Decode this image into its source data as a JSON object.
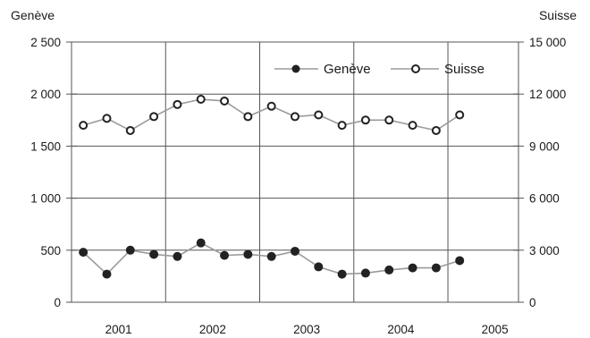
{
  "chart_data": {
    "type": "line",
    "y_left_title": "Genève",
    "y_right_title": "Suisse",
    "y_left_range": [
      0,
      2500
    ],
    "y_right_range": [
      0,
      15000
    ],
    "y_left_ticks": [
      "0",
      "500",
      "1 000",
      "1 500",
      "2 000",
      "2 500"
    ],
    "y_left_tick_values": [
      0,
      500,
      1000,
      1500,
      2000,
      2500
    ],
    "y_right_ticks": [
      "0",
      "3 000",
      "6 000",
      "9 000",
      "12 000",
      "15 000"
    ],
    "y_right_tick_values": [
      0,
      3000,
      6000,
      9000,
      12000,
      15000
    ],
    "x_ticks": [
      "2001",
      "2002",
      "2003",
      "2004",
      "2005"
    ],
    "x_range": [
      2000.75,
      2005.5
    ],
    "x_tick_values": [
      2001.25,
      2002.25,
      2003.25,
      2004.25,
      2005.25
    ],
    "x_grid_values": [
      2001.75,
      2002.75,
      2003.75,
      2004.75
    ],
    "grid": true,
    "legend_position": "top-right",
    "legend": [
      "Genève",
      "Suisse"
    ],
    "series": [
      {
        "name": "Genève",
        "axis": "left",
        "marker": "filled-circle",
        "color": "#222222",
        "x": [
          2000.875,
          2001.125,
          2001.375,
          2001.625,
          2001.875,
          2002.125,
          2002.375,
          2002.625,
          2002.875,
          2003.125,
          2003.375,
          2003.625,
          2003.875,
          2004.125,
          2004.375,
          2004.625,
          2004.875
        ],
        "values": [
          480,
          270,
          500,
          460,
          440,
          570,
          450,
          460,
          440,
          490,
          340,
          270,
          280,
          310,
          330,
          330,
          400
        ]
      },
      {
        "name": "Suisse",
        "axis": "right",
        "marker": "open-circle",
        "color": "#222222",
        "x": [
          2000.875,
          2001.125,
          2001.375,
          2001.625,
          2001.875,
          2002.125,
          2002.375,
          2002.625,
          2002.875,
          2003.125,
          2003.375,
          2003.625,
          2003.875,
          2004.125,
          2004.375,
          2004.625,
          2004.875
        ],
        "values": [
          10200,
          10600,
          9900,
          10700,
          11400,
          11700,
          11600,
          10700,
          11300,
          10700,
          10800,
          10200,
          10500,
          10500,
          10200,
          9900,
          10800
        ]
      }
    ]
  },
  "colors": {
    "background": "#ffffff",
    "grid": "#555555",
    "line": "#9a9a9a",
    "marker": "#222222"
  }
}
